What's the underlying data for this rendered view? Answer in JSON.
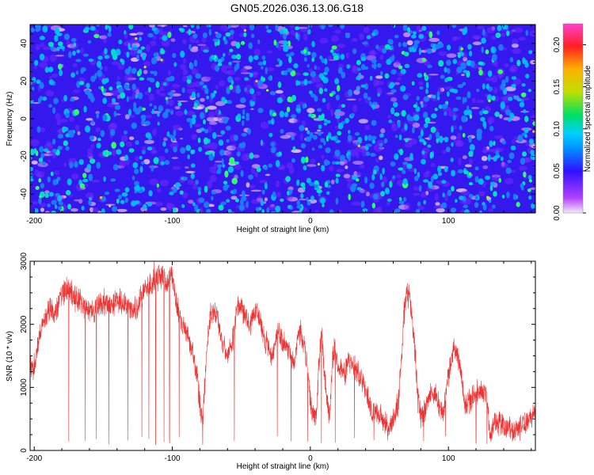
{
  "title": "GN05.2026.036.13.06.G18",
  "colors": {
    "snr_line": "#ee3333",
    "axis": "#000000",
    "background": "#ffffff"
  },
  "chart_data": [
    {
      "type": "heatmap",
      "name": "spectrogram",
      "title": "GN05.2026.036.13.06.G18",
      "xlabel": "Height of straight line (km)",
      "ylabel": "Frequency (Hz)",
      "xlim": [
        -203,
        163
      ],
      "ylim": [
        -50,
        50
      ],
      "xticks": [
        -200,
        -100,
        0,
        100
      ],
      "yticks": [
        -40,
        -20,
        0,
        20,
        40
      ],
      "colorbar": {
        "label": "Normalized spectral amplitude",
        "range": [
          0,
          0.225
        ],
        "ticks": [
          "0.00",
          "0.05",
          "0.10",
          "0.15",
          "0.20"
        ],
        "palette": [
          "#f4e4f6",
          "#b040ff",
          "#3010ff",
          "#0090ff",
          "#00d0ff",
          "#00e060",
          "#c0e000",
          "#ffb000",
          "#ff2020",
          "#ff40d0"
        ]
      },
      "description_values": {
        "background_level": 0.03,
        "typical_peak_level": 0.09,
        "max_peak_level": 0.14
      }
    },
    {
      "type": "line",
      "name": "snr",
      "xlabel": "Height of straight line (km)",
      "ylabel": "SNR (10 * v/v)",
      "xlim": [
        -203,
        163
      ],
      "ylim": [
        0,
        3000
      ],
      "xticks": [
        -200,
        -100,
        0,
        100
      ],
      "yticks": [
        0,
        1000,
        2000,
        3000
      ],
      "series": [
        {
          "name": "SNR",
          "x": [
            -203,
            -200,
            -195,
            -190,
            -185,
            -180,
            -175,
            -170,
            -165,
            -160,
            -155,
            -150,
            -145,
            -140,
            -135,
            -130,
            -125,
            -120,
            -115,
            -110,
            -105,
            -100,
            -97,
            -94,
            -90,
            -86,
            -82,
            -80,
            -78,
            -75,
            -72,
            -68,
            -64,
            -60,
            -56,
            -52,
            -48,
            -44,
            -40,
            -36,
            -32,
            -28,
            -24,
            -20,
            -16,
            -12,
            -8,
            -4,
            0,
            2,
            4,
            6,
            8,
            10,
            12,
            14,
            16,
            18,
            20,
            24,
            28,
            32,
            36,
            40,
            44,
            48,
            52,
            56,
            60,
            64,
            66,
            68,
            70,
            72,
            74,
            76,
            78,
            80,
            84,
            88,
            92,
            96,
            100,
            104,
            108,
            112,
            116,
            120,
            124,
            128,
            130,
            134,
            140,
            148,
            156,
            163
          ],
          "y": [
            1300,
            1350,
            1900,
            2200,
            2200,
            2500,
            2550,
            2400,
            2350,
            2200,
            2250,
            2350,
            2300,
            2350,
            2350,
            2250,
            2300,
            2550,
            2650,
            2750,
            2700,
            2750,
            2300,
            2100,
            1900,
            1600,
            1200,
            700,
            500,
            1600,
            2200,
            2200,
            1700,
            1500,
            1800,
            2350,
            2150,
            2000,
            2200,
            2000,
            1700,
            1500,
            1900,
            1700,
            1650,
            1400,
            1900,
            1650,
            800,
            600,
            500,
            1300,
            1900,
            1300,
            800,
            550,
            1400,
            1650,
            1300,
            1200,
            1400,
            1300,
            1200,
            1000,
            600,
            650,
            500,
            400,
            450,
            800,
            1500,
            2200,
            2500,
            2400,
            2000,
            1500,
            800,
            500,
            700,
            950,
            800,
            600,
            1200,
            1650,
            1400,
            700,
            800,
            900,
            950,
            850,
            250,
            450,
            400,
            300,
            450,
            600
          ],
          "noise_amplitude": 300,
          "dips": [
            -175,
            -163,
            -155,
            -146,
            -132,
            -122,
            -117,
            -112,
            -106,
            -102,
            -95,
            -78,
            -55,
            -24,
            -14,
            -2,
            8,
            18,
            32,
            46,
            56,
            82,
            98,
            120,
            128
          ],
          "spikes": [
            -113
          ]
        }
      ]
    }
  ]
}
